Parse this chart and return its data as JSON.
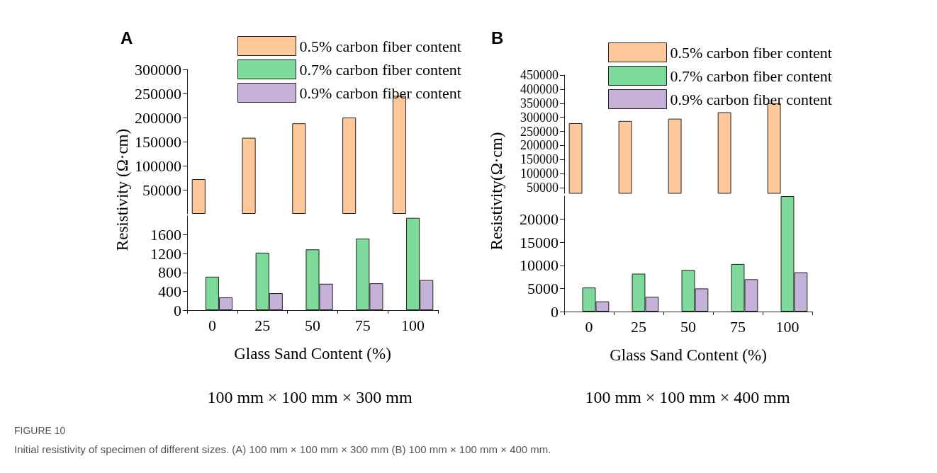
{
  "chart_data": [
    {
      "type": "bar",
      "title": "A",
      "ylabel": "Resistivity (Ω·cm)",
      "categories": [
        "0",
        "25",
        "50",
        "75",
        "100"
      ],
      "tick_labels": "y",
      "ylim": [
        0,
        300000
      ],
      "yticks": [
        50000,
        100000,
        150000,
        200000,
        250000,
        300000
      ],
      "legend": "top right",
      "grid": false,
      "series": [
        {
          "name": "0.5% carbon fiber content",
          "color": "#ffc89a",
          "values": [
            72000,
            158000,
            188000,
            200000,
            245000
          ]
        },
        {
          "name": "0.7% carbon fiber content",
          "color": "#7dda9a",
          "values": [
            null,
            null,
            null,
            null,
            null
          ]
        },
        {
          "name": "0.9% carbon fiber content",
          "color": "#c6b1d8",
          "values": [
            null,
            null,
            null,
            null,
            null
          ]
        }
      ]
    },
    {
      "type": "bar",
      "xlabel": "Glass Sand Content (%)",
      "categories": [
        "0",
        "25",
        "50",
        "75",
        "100"
      ],
      "ylim": [
        0,
        2000
      ],
      "yticks": [
        0,
        400,
        800,
        1200,
        1600
      ],
      "grid": false,
      "annotations": [
        "100 mm × 100 mm × 300 mm",
        "FIGURE 10",
        "Initial resistivity of specimen of different sizes. (A) 100 mm × 100 mm × 300 mm (B) 100 mm × 100 mm × 400 mm."
      ],
      "series": [
        {
          "color": "#ffc89a",
          "values": [
            null,
            null,
            null,
            null,
            null
          ]
        },
        {
          "color": "#7dda9a",
          "values": [
            710,
            1220,
            1290,
            1520,
            1960
          ]
        },
        {
          "color": "#c6b1d8",
          "values": [
            270,
            360,
            560,
            570,
            640
          ]
        }
      ]
    },
    {
      "type": "bar",
      "title": "B",
      "ylabel": "Resistivity(Ω·cm)",
      "categories": [
        "0",
        "25",
        "50",
        "75",
        "100"
      ],
      "tick_labels": "y",
      "ylim": [
        30000,
        450000
      ],
      "yticks": [
        50000,
        100000,
        150000,
        200000,
        250000,
        300000,
        350000,
        400000,
        450000
      ],
      "legend": "top right",
      "grid": false,
      "series": [
        {
          "name": "0.5% carbon fiber content",
          "color": "#ffc89a",
          "values": [
            279000,
            287000,
            295000,
            318000,
            350000
          ]
        },
        {
          "name": "0.7% carbon fiber content",
          "color": "#7dda9a",
          "values": [
            null,
            null,
            null,
            null,
            null
          ]
        },
        {
          "name": "0.9% carbon fiber content",
          "color": "#c6b1d8",
          "values": [
            null,
            null,
            null,
            null,
            null
          ]
        }
      ]
    },
    {
      "type": "bar",
      "xlabel": "Glass Sand Content (%)",
      "categories": [
        "0",
        "25",
        "50",
        "75",
        "100"
      ],
      "ylim": [
        0,
        25000
      ],
      "yticks": [
        0,
        5000,
        10000,
        15000,
        20000
      ],
      "grid": false,
      "annotations": [
        "100 mm × 100 mm × 400 mm"
      ],
      "series": [
        {
          "color": "#ffc89a",
          "values": [
            null,
            null,
            null,
            null,
            null
          ]
        },
        {
          "color": "#7dda9a",
          "values": [
            5200,
            8200,
            9000,
            10300,
            25000
          ]
        },
        {
          "color": "#c6b1d8",
          "values": [
            2200,
            3200,
            5000,
            7000,
            8500
          ]
        }
      ]
    }
  ]
}
